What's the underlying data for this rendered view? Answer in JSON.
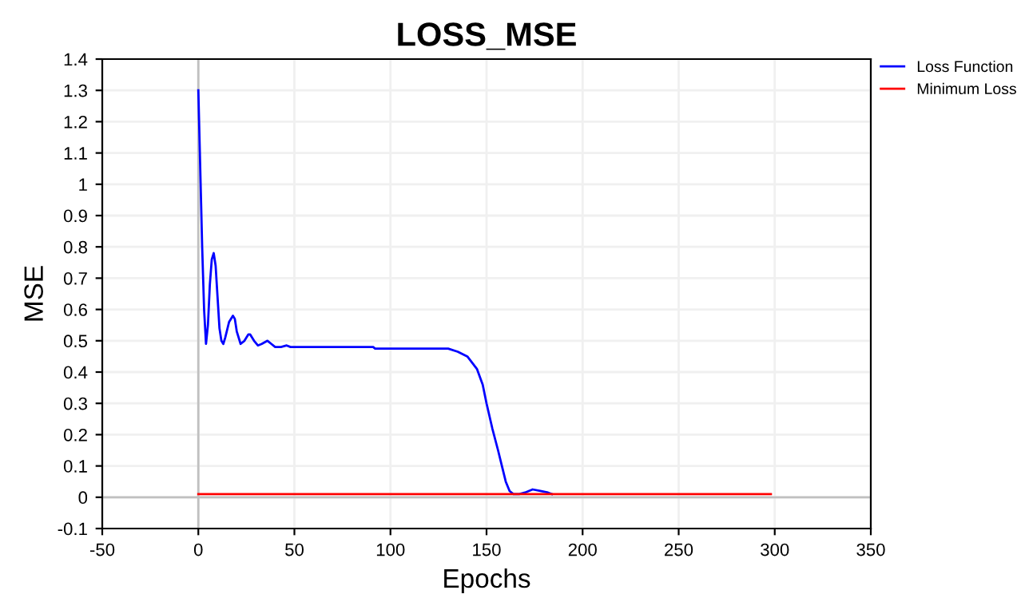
{
  "chart_data": {
    "type": "line",
    "title": "LOSS_MSE",
    "xlabel": "Epochs",
    "ylabel": "MSE",
    "xlim": [
      -50,
      350
    ],
    "xticks": [
      -50,
      0,
      50,
      100,
      150,
      200,
      250,
      300,
      350
    ],
    "ylim": [
      -0.1,
      1.4
    ],
    "yticks": [
      -0.1,
      0,
      0.1,
      0.2,
      0.3,
      0.4,
      0.5,
      0.6,
      0.7,
      0.8,
      0.9,
      1,
      1.1,
      1.2,
      1.3,
      1.4
    ],
    "grid": true,
    "legend": "top right",
    "marker": "none",
    "line_style": "solid",
    "series": [
      {
        "name": "Loss Function",
        "color": "#0000ff",
        "x": [
          0,
          1,
          2,
          3,
          4,
          5,
          6,
          7,
          8,
          9,
          10,
          11,
          12,
          13,
          14,
          16,
          18,
          19,
          20,
          22,
          24,
          26,
          27,
          29,
          31,
          33,
          36,
          38,
          40,
          43,
          46,
          48,
          91,
          92,
          130,
          135,
          140,
          145,
          148,
          150,
          153,
          156,
          158,
          160,
          162,
          164,
          167,
          170,
          174,
          178,
          182,
          184
        ],
        "values": [
          1.3,
          1.05,
          0.8,
          0.6,
          0.49,
          0.55,
          0.68,
          0.76,
          0.78,
          0.74,
          0.64,
          0.54,
          0.5,
          0.49,
          0.51,
          0.56,
          0.58,
          0.57,
          0.53,
          0.49,
          0.5,
          0.52,
          0.52,
          0.5,
          0.485,
          0.49,
          0.5,
          0.49,
          0.48,
          0.48,
          0.485,
          0.48,
          0.48,
          0.475,
          0.475,
          0.465,
          0.45,
          0.41,
          0.36,
          0.3,
          0.22,
          0.15,
          0.1,
          0.05,
          0.02,
          0.01,
          0.01,
          0.015,
          0.025,
          0.02,
          0.015,
          0.01
        ]
      },
      {
        "name": "Minimum Loss",
        "color": "#ff0000",
        "x": [
          0,
          298
        ],
        "values": [
          0.01,
          0.01
        ]
      }
    ]
  }
}
